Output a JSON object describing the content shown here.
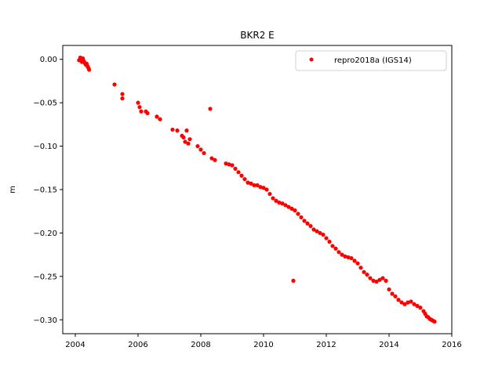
{
  "chart_data": {
    "type": "scatter",
    "title": "BKR2 E",
    "xlabel": "",
    "ylabel": "m",
    "xlim": [
      2003.6,
      2016.0
    ],
    "ylim": [
      -0.316,
      0.016
    ],
    "xticks": [
      2004,
      2006,
      2008,
      2010,
      2012,
      2014,
      2016
    ],
    "xtick_labels": [
      "2004",
      "2006",
      "2008",
      "2010",
      "2012",
      "2014",
      "2016"
    ],
    "yticks": [
      0.0,
      -0.05,
      -0.1,
      -0.15,
      -0.2,
      -0.25,
      -0.3
    ],
    "ytick_labels": [
      "0.00",
      "−0.05",
      "−0.10",
      "−0.15",
      "−0.20",
      "−0.25",
      "−0.30"
    ],
    "grid": false,
    "legend_position": "top-right",
    "series": [
      {
        "name": "repro2018a (IGS14)",
        "color": "#ff0000",
        "marker": "circle",
        "x": [
          2004.12,
          2004.16,
          2004.19,
          2004.21,
          2004.24,
          2004.27,
          2004.3,
          2004.33,
          2004.36,
          2004.39,
          2004.42,
          2004.44,
          2005.25,
          2005.5,
          2005.5,
          2006.0,
          2006.05,
          2006.1,
          2006.25,
          2006.3,
          2006.6,
          2006.7,
          2007.1,
          2007.25,
          2007.4,
          2007.45,
          2007.5,
          2007.55,
          2007.6,
          2007.65,
          2007.9,
          2008.0,
          2008.1,
          2008.3,
          2008.35,
          2008.45,
          2008.8,
          2008.9,
          2009.0,
          2009.1,
          2009.2,
          2009.3,
          2009.4,
          2009.5,
          2009.6,
          2009.7,
          2009.8,
          2009.9,
          2010.0,
          2010.1,
          2010.2,
          2010.3,
          2010.4,
          2010.5,
          2010.6,
          2010.7,
          2010.8,
          2010.9,
          2010.95,
          2011.0,
          2011.1,
          2011.2,
          2011.3,
          2011.4,
          2011.5,
          2011.6,
          2011.7,
          2011.8,
          2011.9,
          2012.0,
          2012.1,
          2012.2,
          2012.3,
          2012.4,
          2012.5,
          2012.6,
          2012.7,
          2012.8,
          2012.9,
          2013.0,
          2013.1,
          2013.2,
          2013.3,
          2013.4,
          2013.5,
          2013.6,
          2013.7,
          2013.8,
          2013.9,
          2014.0,
          2014.1,
          2014.2,
          2014.3,
          2014.4,
          2014.5,
          2014.6,
          2014.7,
          2014.8,
          2014.9,
          2015.0,
          2015.1,
          2015.15,
          2015.2,
          2015.25,
          2015.3,
          2015.35,
          2015.4,
          2015.45
        ],
        "y": [
          -0.001,
          0.002,
          0.0,
          -0.003,
          0.001,
          -0.002,
          -0.004,
          -0.006,
          -0.005,
          -0.008,
          -0.01,
          -0.012,
          -0.029,
          -0.04,
          -0.045,
          -0.05,
          -0.055,
          -0.06,
          -0.06,
          -0.062,
          -0.066,
          -0.069,
          -0.081,
          -0.082,
          -0.088,
          -0.09,
          -0.095,
          -0.082,
          -0.097,
          -0.092,
          -0.1,
          -0.104,
          -0.108,
          -0.057,
          -0.114,
          -0.116,
          -0.12,
          -0.121,
          -0.122,
          -0.126,
          -0.13,
          -0.134,
          -0.138,
          -0.142,
          -0.143,
          -0.145,
          -0.145,
          -0.147,
          -0.148,
          -0.15,
          -0.155,
          -0.16,
          -0.163,
          -0.165,
          -0.166,
          -0.168,
          -0.17,
          -0.172,
          -0.255,
          -0.174,
          -0.178,
          -0.182,
          -0.186,
          -0.189,
          -0.192,
          -0.196,
          -0.198,
          -0.2,
          -0.202,
          -0.206,
          -0.21,
          -0.215,
          -0.218,
          -0.222,
          -0.225,
          -0.227,
          -0.228,
          -0.229,
          -0.232,
          -0.235,
          -0.24,
          -0.245,
          -0.248,
          -0.252,
          -0.255,
          -0.256,
          -0.254,
          -0.252,
          -0.255,
          -0.265,
          -0.27,
          -0.273,
          -0.277,
          -0.28,
          -0.282,
          -0.28,
          -0.279,
          -0.282,
          -0.284,
          -0.286,
          -0.29,
          -0.293,
          -0.296,
          -0.297,
          -0.299,
          -0.3,
          -0.301,
          -0.302
        ]
      }
    ]
  }
}
